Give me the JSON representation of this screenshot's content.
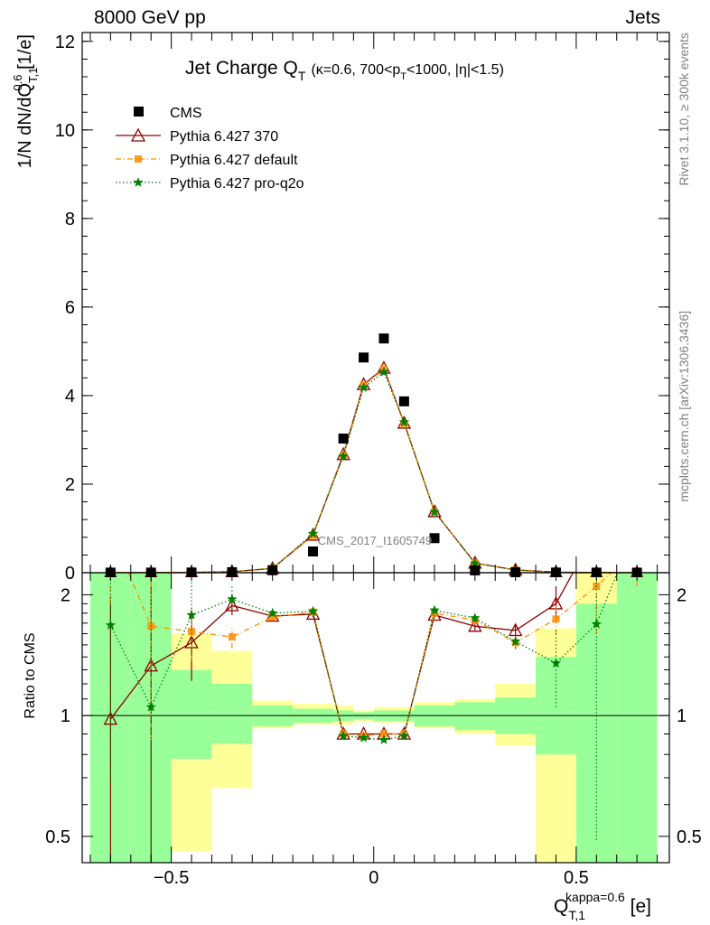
{
  "header": {
    "left": "8000 GeV pp",
    "right": "Jets"
  },
  "side_labels": {
    "rivet": "Rivet 3.1.10, ≥ 300k events",
    "mcplots": "mcplots.cern.ch [arXiv:1306.3436]"
  },
  "chart_data": {
    "type": "scatter",
    "title": {
      "main": "Jet Charge Q",
      "main_sub": "T",
      "cond_a": "(κ=0.6, 700<p",
      "cond_sub": "T",
      "cond_b": "<1000, |η|<1.5)"
    },
    "watermark": "CMS_2017_I1605749",
    "ylabel": {
      "a": "1/N dN/dQ",
      "sup": "0.6",
      "sub": "T,1",
      "b": " [1/e]"
    },
    "xlabel": {
      "a": "Q",
      "sup": "kappa=0.6",
      "sub": "T,1",
      "b": " [e]"
    },
    "ratio_ylabel": "Ratio to CMS",
    "xlim": [
      -0.72,
      0.73
    ],
    "ylim_main": [
      0,
      12.2
    ],
    "yticks_main": [
      0,
      2,
      4,
      6,
      8,
      10,
      12
    ],
    "ratio_ylim": [
      0.43,
      2.27
    ],
    "ratio_scale": "log",
    "ratio_ticks": [
      0.5,
      1,
      2
    ],
    "xticks": [
      -0.5,
      0,
      0.5
    ],
    "xtick_labels": [
      "−0.5",
      "0",
      "0.5"
    ],
    "legend_position": "top-left",
    "bins": [
      -0.65,
      -0.55,
      -0.45,
      -0.35,
      -0.25,
      -0.15,
      -0.075,
      -0.025,
      0.025,
      0.075,
      0.15,
      0.25,
      0.35,
      0.45,
      0.55,
      0.65
    ],
    "bin_edges": [
      -0.7,
      -0.6,
      -0.5,
      -0.4,
      -0.3,
      -0.2,
      -0.1,
      -0.05,
      0.0,
      0.05,
      0.1,
      0.2,
      0.3,
      0.4,
      0.5,
      0.6,
      0.7
    ],
    "data": {
      "name": "CMS",
      "color": "#000000",
      "values": [
        0.002,
        0.002,
        0.004,
        0.012,
        0.055,
        0.48,
        3.03,
        4.86,
        5.29,
        3.87,
        0.78,
        0.052,
        0.011,
        0.004,
        0.002,
        0.002
      ]
    },
    "stat_band": {
      "color": "#99ff99",
      "lo": [
        0.3,
        0.3,
        0.78,
        0.85,
        0.94,
        0.96,
        0.97,
        0.98,
        0.97,
        0.97,
        0.94,
        0.92,
        0.9,
        0.8,
        0.3,
        0.3
      ],
      "hi": [
        3,
        3,
        1.3,
        1.2,
        1.06,
        1.04,
        1.03,
        1.02,
        1.03,
        1.03,
        1.06,
        1.08,
        1.11,
        1.4,
        1.9,
        3
      ]
    },
    "syst_band": {
      "color": "#ffff99",
      "lo": [
        0.3,
        0.66,
        0.46,
        0.66,
        0.93,
        0.95,
        0.95,
        0.97,
        0.96,
        0.96,
        0.93,
        0.9,
        0.84,
        0.3,
        0.69,
        0.3
      ],
      "hi": [
        3,
        1.23,
        1.6,
        1.45,
        1.09,
        1.07,
        1.06,
        1.03,
        1.05,
        1.05,
        1.08,
        1.1,
        1.2,
        1.65,
        3,
        3
      ]
    },
    "series": [
      {
        "name": "Pythia 6.427 370",
        "color": "#8b0000",
        "line": "solid",
        "marker": "open-triangle",
        "values": [
          0.002,
          0.003,
          0.006,
          0.022,
          0.097,
          0.85,
          2.67,
          4.25,
          4.62,
          3.38,
          1.38,
          0.22,
          0.062,
          0.013,
          0.004,
          0.002
        ],
        "ratio": [
          0.98,
          1.33,
          1.52,
          1.88,
          1.77,
          1.79,
          0.9,
          0.9,
          0.9,
          0.9,
          1.78,
          1.67,
          1.63,
          1.9,
          2.9,
          3.5
        ],
        "ratio_err": [
          1.0,
          1.0,
          0.3,
          0.1,
          0.03,
          0.03,
          0.01,
          0.01,
          0.01,
          0.01,
          0.03,
          0.04,
          0.06,
          0.2,
          0.5,
          0.5
        ]
      },
      {
        "name": "Pythia 6.427 default",
        "color": "#ff8c00",
        "line": "dashdot",
        "marker": "filled-square",
        "values": [
          0.002,
          0.003,
          0.006,
          0.02,
          0.095,
          0.84,
          2.65,
          4.23,
          4.6,
          3.37,
          1.37,
          0.22,
          0.06,
          0.012,
          0.004,
          0.002
        ],
        "ratio": [
          2.9,
          1.67,
          1.62,
          1.57,
          1.76,
          1.81,
          0.9,
          0.89,
          0.9,
          0.9,
          1.8,
          1.73,
          1.52,
          1.74,
          2.1,
          2.6
        ],
        "ratio_err": [
          1.0,
          0.8,
          0.25,
          0.1,
          0.03,
          0.03,
          0.01,
          0.01,
          0.01,
          0.01,
          0.03,
          0.04,
          0.06,
          0.15,
          0.5,
          0.5
        ]
      },
      {
        "name": "Pythia 6.427 pro-q2o",
        "color": "#008000",
        "line": "dotted",
        "marker": "star",
        "values": [
          0.002,
          0.003,
          0.006,
          0.023,
          0.1,
          0.88,
          2.63,
          4.18,
          4.53,
          3.4,
          1.37,
          0.21,
          0.06,
          0.012,
          0.004,
          0.002
        ],
        "ratio": [
          1.68,
          1.05,
          1.78,
          1.95,
          1.8,
          1.82,
          0.89,
          0.88,
          0.87,
          0.89,
          1.83,
          1.75,
          1.53,
          1.35,
          1.69,
          3.0
        ],
        "ratio_err": [
          1.0,
          1.0,
          0.4,
          0.15,
          0.03,
          0.03,
          0.01,
          0.01,
          0.01,
          0.01,
          0.03,
          0.04,
          0.06,
          0.3,
          1.2,
          0.5
        ]
      }
    ]
  }
}
